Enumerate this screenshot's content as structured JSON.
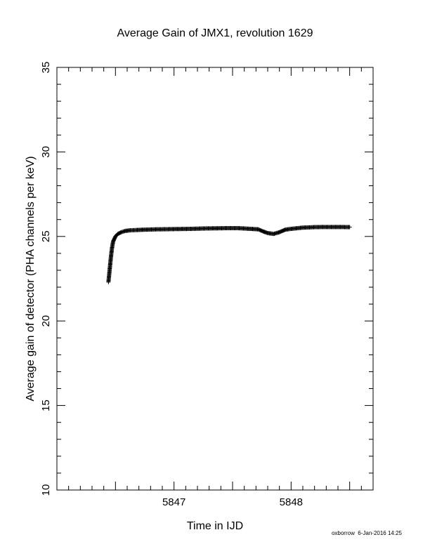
{
  "chart_data": {
    "type": "scatter",
    "title": "Average Gain of JMX1, revolution 1629",
    "xlabel": "Time in IJD",
    "ylabel": "Average gain of detector (PHA channels per keV)",
    "xlim": [
      5846.0,
      5848.7
    ],
    "ylim": [
      10,
      35
    ],
    "xticks": [
      "5847",
      "5848"
    ],
    "yticks": [
      "10",
      "15",
      "20",
      "25",
      "30",
      "35"
    ],
    "grid": false,
    "marker": "plus",
    "series": [
      {
        "x": [
          5846.44,
          5846.45,
          5846.46,
          5846.47,
          5846.48,
          5846.5,
          5846.52,
          5846.55,
          5846.58,
          5846.62,
          5846.68,
          5846.75,
          5846.85,
          5846.95,
          5847.05,
          5847.15,
          5847.25,
          5847.35,
          5847.45,
          5847.55,
          5847.65,
          5847.72,
          5847.76,
          5847.8,
          5847.85,
          5847.9,
          5847.95,
          5848.0,
          5848.1,
          5848.2,
          5848.3,
          5848.4,
          5848.5
        ],
        "y": [
          22.3,
          23.0,
          23.7,
          24.3,
          24.7,
          25.0,
          25.15,
          25.25,
          25.32,
          25.36,
          25.38,
          25.4,
          25.42,
          25.43,
          25.44,
          25.45,
          25.47,
          25.48,
          25.49,
          25.49,
          25.45,
          25.42,
          25.3,
          25.2,
          25.15,
          25.25,
          25.4,
          25.45,
          25.52,
          25.55,
          25.56,
          25.56,
          25.55
        ]
      }
    ]
  },
  "footer": {
    "credit": "oxborrow  6-Jan-2016 14:25"
  }
}
